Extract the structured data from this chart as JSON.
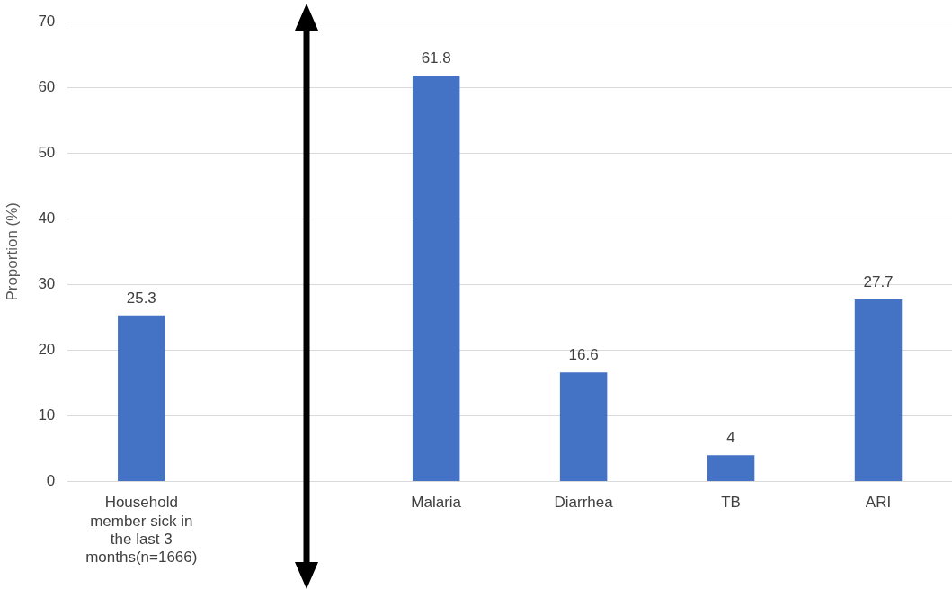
{
  "chart_data": {
    "type": "bar",
    "ylabel": "Proportion (%)",
    "categories": [
      "Household member sick in the last 3 months(n=1666)",
      null,
      "Malaria",
      "Diarrhea",
      "TB",
      "ARI"
    ],
    "values": [
      25.3,
      null,
      61.8,
      16.6,
      4,
      27.7
    ],
    "color": "#4472c4",
    "ylim": [
      0,
      70
    ],
    "yticks": [
      0,
      10,
      20,
      30,
      40,
      50,
      60,
      70
    ],
    "grid": "y",
    "data_labels": true
  }
}
